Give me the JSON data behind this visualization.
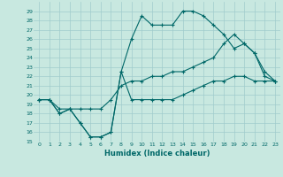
{
  "xlabel": "Humidex (Indice chaleur)",
  "bg_color": "#c8e8e0",
  "grid_color": "#a0cccc",
  "line_color": "#006868",
  "xlim": [
    -0.5,
    23.5
  ],
  "ylim": [
    15,
    30
  ],
  "xticks": [
    0,
    1,
    2,
    3,
    4,
    5,
    6,
    7,
    8,
    9,
    10,
    11,
    12,
    13,
    14,
    15,
    16,
    17,
    18,
    19,
    20,
    21,
    22,
    23
  ],
  "yticks": [
    15,
    16,
    17,
    18,
    19,
    20,
    21,
    22,
    23,
    24,
    25,
    26,
    27,
    28,
    29
  ],
  "line1_x": [
    0,
    1,
    2,
    3,
    4,
    5,
    6,
    7,
    8,
    9,
    10,
    11,
    12,
    13,
    14,
    15,
    16,
    17,
    18,
    19,
    20,
    21,
    22,
    23
  ],
  "line1_y": [
    19.5,
    19.5,
    18.0,
    18.5,
    17.0,
    15.5,
    15.5,
    16.0,
    22.5,
    19.5,
    19.5,
    19.5,
    19.5,
    19.5,
    20.0,
    20.5,
    21.0,
    21.5,
    21.5,
    22.0,
    22.0,
    21.5,
    21.5,
    21.5
  ],
  "line2_x": [
    0,
    1,
    2,
    3,
    4,
    5,
    6,
    7,
    8,
    9,
    10,
    11,
    12,
    13,
    14,
    15,
    16,
    17,
    18,
    19,
    20,
    21,
    22,
    23
  ],
  "line2_y": [
    19.5,
    19.5,
    18.0,
    18.5,
    17.0,
    15.5,
    15.5,
    16.0,
    22.5,
    26.0,
    28.5,
    27.5,
    27.5,
    27.5,
    29.0,
    29.0,
    28.5,
    27.5,
    26.5,
    25.0,
    25.5,
    24.5,
    22.5,
    21.5
  ],
  "line3_x": [
    0,
    1,
    2,
    3,
    4,
    5,
    6,
    7,
    8,
    9,
    10,
    11,
    12,
    13,
    14,
    15,
    16,
    17,
    18,
    19,
    20,
    21,
    22,
    23
  ],
  "line3_y": [
    19.5,
    19.5,
    18.5,
    18.5,
    18.5,
    18.5,
    18.5,
    19.5,
    21.0,
    21.5,
    21.5,
    22.0,
    22.0,
    22.5,
    22.5,
    23.0,
    23.5,
    24.0,
    25.5,
    26.5,
    25.5,
    24.5,
    22.0,
    21.5
  ]
}
